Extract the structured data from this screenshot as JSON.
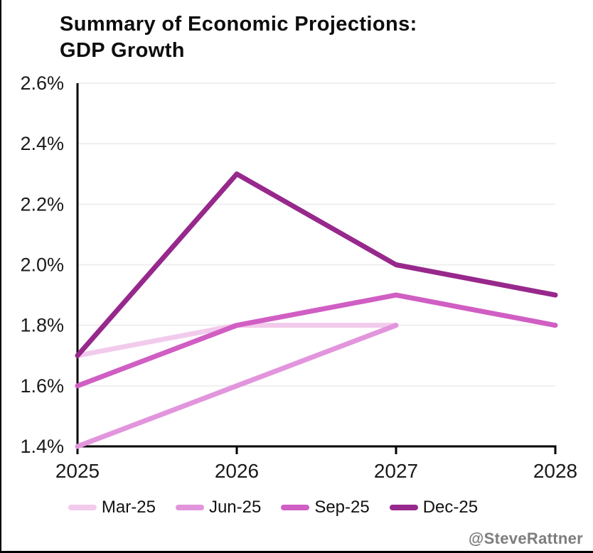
{
  "title": {
    "line1": "Summary of Economic Projections:",
    "line2": "GDP Growth"
  },
  "watermark": "@SteveRattner",
  "chart_data": {
    "type": "line",
    "title": "Summary of Economic Projections: GDP Growth",
    "xlabel": "",
    "ylabel": "",
    "xlim": [
      2025,
      2028
    ],
    "ylim": [
      1.4,
      2.6
    ],
    "x_ticks": [
      2025,
      2026,
      2027,
      2028
    ],
    "x_tick_labels": [
      "2025",
      "2026",
      "2027",
      "2028"
    ],
    "y_ticks": [
      1.4,
      1.6,
      1.8,
      2.0,
      2.2,
      2.4,
      2.6
    ],
    "y_tick_labels": [
      "1.4%",
      "1.6%",
      "1.8%",
      "2.0%",
      "2.2%",
      "2.4%",
      "2.6%"
    ],
    "grid": "horizontal-only",
    "legend_position": "bottom",
    "series": [
      {
        "name": "Mar-25",
        "color": "#F2CBEC",
        "x": [
          2025,
          2026,
          2027
        ],
        "values": [
          1.7,
          1.8,
          1.8
        ]
      },
      {
        "name": "Jun-25",
        "color": "#E295DC",
        "x": [
          2025,
          2026,
          2027
        ],
        "values": [
          1.4,
          1.6,
          1.8
        ]
      },
      {
        "name": "Sep-25",
        "color": "#D05EC3",
        "x": [
          2025,
          2026,
          2027,
          2028
        ],
        "values": [
          1.6,
          1.8,
          1.9,
          1.8
        ]
      },
      {
        "name": "Dec-25",
        "color": "#97288C",
        "x": [
          2025,
          2026,
          2027,
          2028
        ],
        "values": [
          1.7,
          2.3,
          2.0,
          1.9
        ]
      }
    ],
    "colors": {
      "axis": "#000000",
      "grid": "#efefef",
      "tick_labels": "#1a1a1a"
    }
  }
}
